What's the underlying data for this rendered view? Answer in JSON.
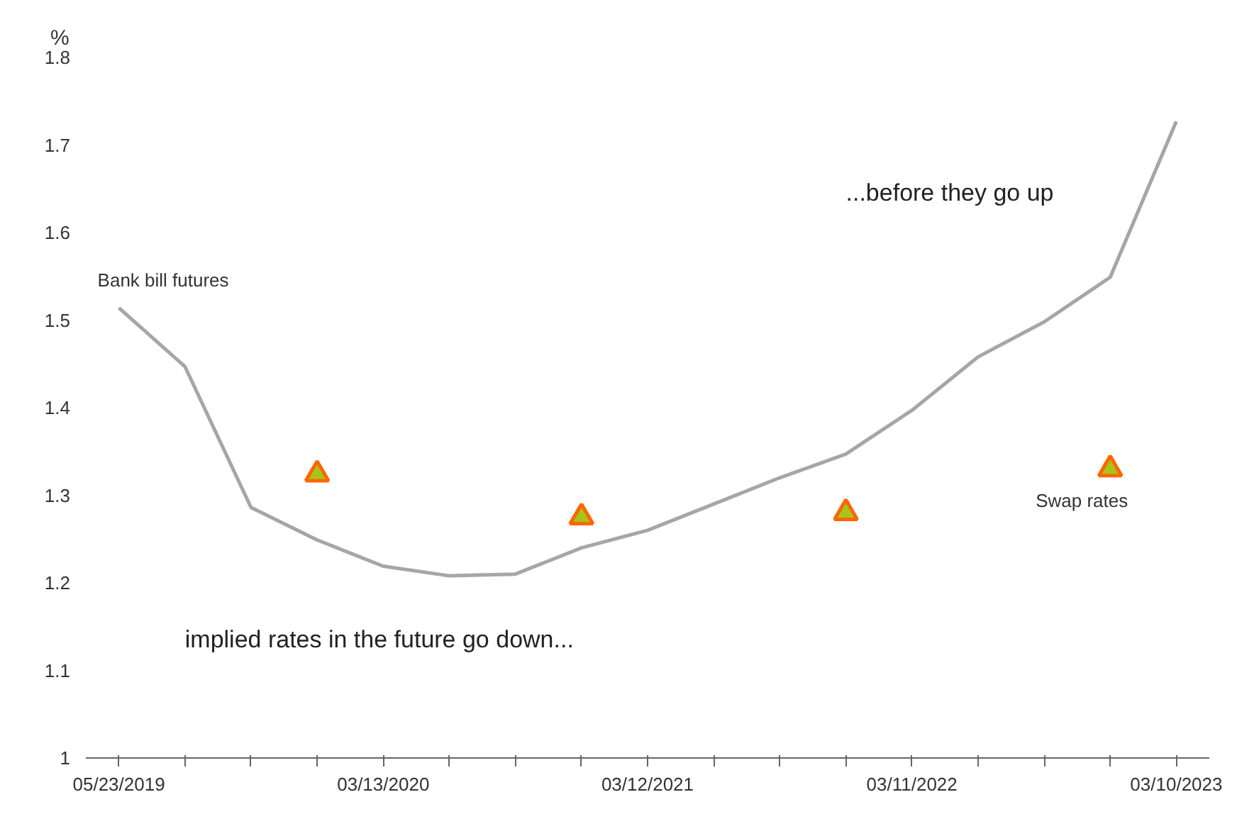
{
  "chart_data": {
    "type": "line",
    "ylabel": "%",
    "categories": [
      "05/23/2019",
      null,
      null,
      null,
      "03/13/2020",
      null,
      null,
      null,
      "03/12/2021",
      null,
      null,
      null,
      "03/11/2022",
      null,
      null,
      null,
      "03/10/2023"
    ],
    "series": [
      {
        "name": "Bank bill futures",
        "color": "#a6a6a6",
        "values": [
          1.514,
          1.447,
          1.286,
          1.249,
          1.219,
          1.208,
          1.21,
          1.24,
          1.26,
          1.29,
          1.32,
          1.347,
          1.397,
          1.458,
          1.498,
          1.549,
          1.727
        ]
      },
      {
        "name": "Swap rates",
        "type": "scatter",
        "marker": "triangle",
        "color": "#a8c41c",
        "values": [
          null,
          null,
          null,
          1.324,
          null,
          null,
          null,
          1.275,
          null,
          null,
          null,
          1.28,
          null,
          null,
          null,
          1.33,
          null
        ]
      }
    ],
    "ylim": [
      1,
      1.8
    ],
    "yticks": [
      1,
      1.1,
      1.2,
      1.3,
      1.4,
      1.5,
      1.6,
      1.7,
      1.8
    ],
    "grid": false,
    "legend": false,
    "annotations": [
      "implied rates in the future go down...",
      "...before they go up"
    ]
  }
}
